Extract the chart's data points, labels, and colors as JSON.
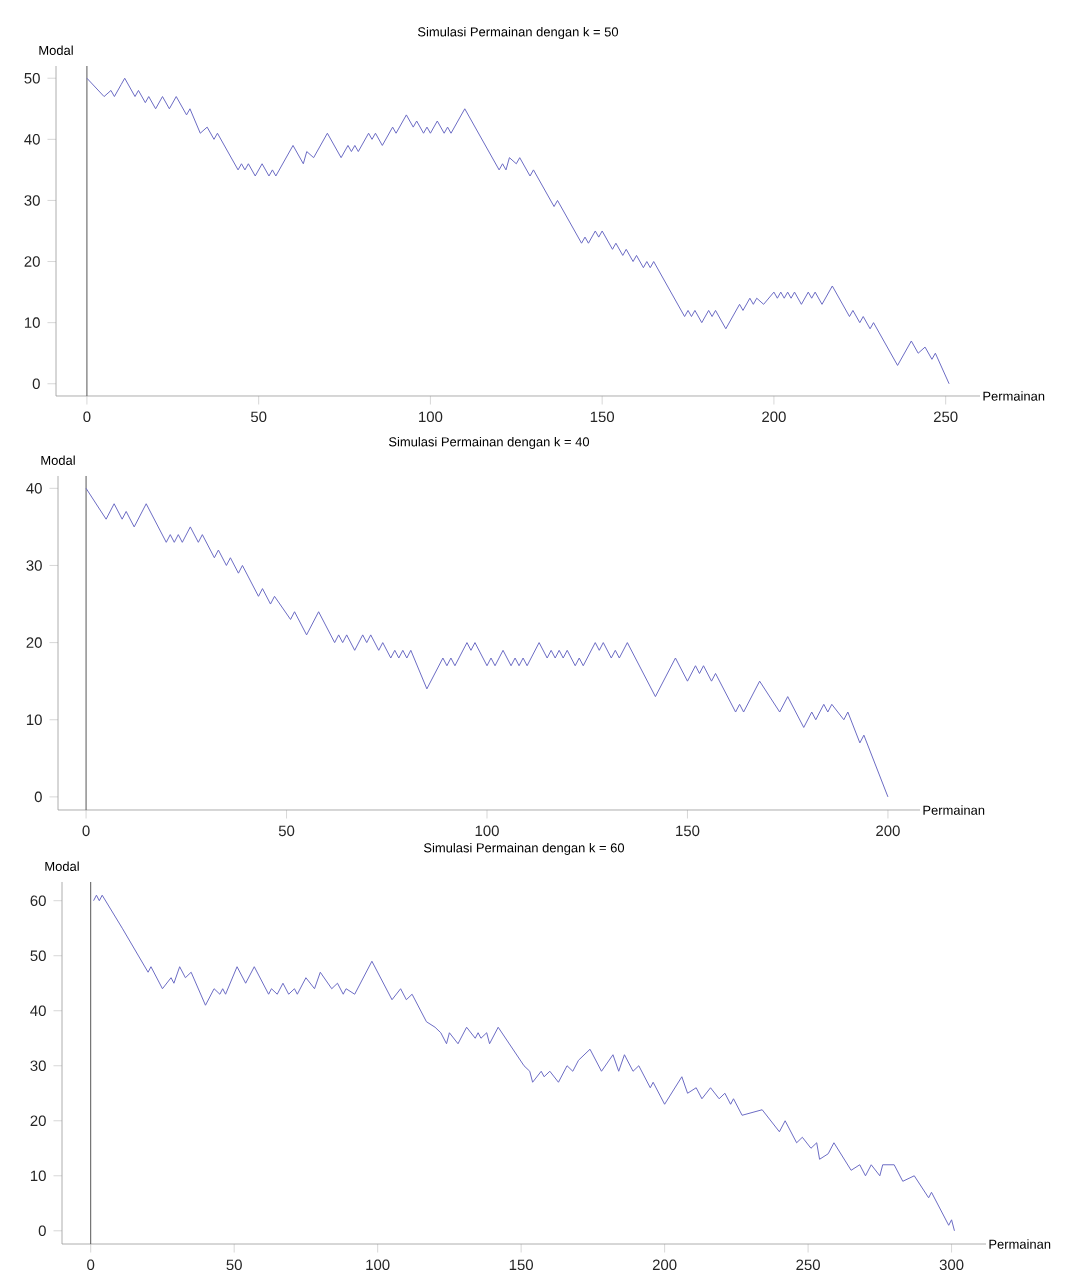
{
  "chart_data": [
    {
      "type": "line",
      "title": "Simulasi Permainan dengan k = 50",
      "xlabel": "Permainan",
      "ylabel": "Modal",
      "xlim": [
        -9,
        260
      ],
      "ylim": [
        -2,
        52
      ],
      "xticks": [
        0,
        50,
        100,
        150,
        200,
        250
      ],
      "yticks": [
        0,
        10,
        20,
        30,
        40,
        50
      ],
      "grid": false,
      "ref_lines": [
        {
          "axis": "x",
          "value": 0,
          "color": "#555555"
        }
      ],
      "series": [
        {
          "color": "#6b6bc4",
          "x": [
            0,
            5,
            7,
            8,
            10,
            11,
            14,
            15,
            17,
            18,
            20,
            22,
            24,
            26,
            29,
            30,
            33,
            35,
            37,
            38,
            44,
            45,
            46,
            47,
            49,
            51,
            53,
            54,
            55,
            60,
            63,
            64,
            66,
            70,
            74,
            76,
            77,
            78,
            79,
            82,
            83,
            84,
            86,
            89,
            90,
            93,
            95,
            96,
            98,
            99,
            100,
            102,
            104,
            105,
            106,
            110,
            120,
            121,
            122,
            123,
            125,
            126,
            129,
            130,
            136,
            137,
            144,
            145,
            146,
            148,
            149,
            150,
            153,
            154,
            156,
            157,
            159,
            160,
            162,
            163,
            164,
            165,
            174,
            175,
            176,
            177,
            179,
            181,
            182,
            183,
            186,
            190,
            191,
            193,
            194,
            195,
            197,
            200,
            201,
            202,
            203,
            204,
            205,
            206,
            208,
            210,
            211,
            212,
            214,
            217,
            222,
            223,
            225,
            226,
            228,
            229,
            236,
            240,
            242,
            244,
            246,
            247,
            251
          ],
          "values": [
            50,
            47,
            48,
            47,
            49,
            50,
            47,
            48,
            46,
            47,
            45,
            47,
            45,
            47,
            44,
            45,
            41,
            42,
            40,
            41,
            35,
            36,
            35,
            36,
            34,
            36,
            34,
            35,
            34,
            39,
            36,
            38,
            37,
            41,
            37,
            39,
            38,
            39,
            38,
            41,
            40,
            41,
            39,
            42,
            41,
            44,
            42,
            43,
            41,
            42,
            41,
            43,
            41,
            42,
            41,
            45,
            35,
            36,
            35,
            37,
            36,
            37,
            34,
            35,
            29,
            30,
            23,
            24,
            23,
            25,
            24,
            25,
            22,
            23,
            21,
            22,
            20,
            21,
            19,
            20,
            19,
            20,
            11,
            12,
            11,
            12,
            10,
            12,
            11,
            12,
            9,
            13,
            12,
            14,
            13,
            14,
            13,
            15,
            14,
            15,
            14,
            15,
            14,
            15,
            13,
            15,
            14,
            15,
            13,
            16,
            11,
            12,
            10,
            11,
            9,
            10,
            3,
            7,
            5,
            6,
            4,
            5,
            0
          ]
        }
      ]
    },
    {
      "type": "line",
      "title": "Simulasi Permainan dengan k = 40",
      "xlabel": "Permainan",
      "ylabel": "Modal",
      "xlim": [
        -7,
        208
      ],
      "ylim": [
        -1.7,
        41.6
      ],
      "xticks": [
        0,
        50,
        100,
        150,
        200
      ],
      "yticks": [
        0,
        10,
        20,
        30,
        40
      ],
      "grid": false,
      "ref_lines": [
        {
          "axis": "x",
          "value": 0,
          "color": "#555555"
        }
      ],
      "series": [
        {
          "color": "#6b6bc4",
          "x": [
            0,
            5,
            7,
            9,
            10,
            12,
            15,
            20,
            21,
            22,
            23,
            24,
            26,
            28,
            29,
            32,
            33,
            35,
            36,
            38,
            39,
            43,
            44,
            46,
            47,
            51,
            52,
            55,
            58,
            62,
            63,
            64,
            65,
            67,
            69,
            70,
            71,
            73,
            74,
            76,
            77,
            78,
            79,
            80,
            81,
            85,
            89,
            90,
            91,
            92,
            95,
            96,
            97,
            100,
            101,
            102,
            104,
            106,
            107,
            108,
            109,
            110,
            113,
            115,
            116,
            117,
            118,
            119,
            120,
            122,
            123,
            124,
            127,
            128,
            129,
            131,
            132,
            133,
            135,
            142,
            147,
            150,
            152,
            153,
            154,
            156,
            157,
            162,
            163,
            164,
            168,
            173,
            175,
            179,
            181,
            182,
            184,
            185,
            186,
            189,
            190,
            193,
            194,
            200
          ],
          "values": [
            40,
            36,
            38,
            36,
            37,
            35,
            38,
            33,
            34,
            33,
            34,
            33,
            35,
            33,
            34,
            31,
            32,
            30,
            31,
            29,
            30,
            26,
            27,
            25,
            26,
            23,
            24,
            21,
            24,
            20,
            21,
            20,
            21,
            19,
            21,
            20,
            21,
            19,
            20,
            18,
            19,
            18,
            19,
            18,
            19,
            14,
            18,
            17,
            18,
            17,
            20,
            19,
            20,
            17,
            18,
            17,
            19,
            17,
            18,
            17,
            18,
            17,
            20,
            18,
            19,
            18,
            19,
            18,
            19,
            17,
            18,
            17,
            20,
            19,
            20,
            18,
            19,
            18,
            20,
            13,
            18,
            15,
            17,
            16,
            17,
            15,
            16,
            11,
            12,
            11,
            15,
            11,
            13,
            9,
            11,
            10,
            12,
            11,
            12,
            10,
            11,
            7,
            8,
            0
          ]
        }
      ]
    },
    {
      "type": "line",
      "title": "Simulasi Permainan dengan k = 60",
      "xlabel": "Permainan",
      "ylabel": "Modal",
      "xlim": [
        -10,
        312
      ],
      "ylim": [
        -2.4,
        63.4
      ],
      "xticks": [
        0,
        50,
        100,
        150,
        200,
        250,
        300
      ],
      "yticks": [
        0,
        10,
        20,
        30,
        40,
        50,
        60
      ],
      "grid": false,
      "ref_lines": [
        {
          "axis": "x",
          "value": 0,
          "color": "#555555"
        }
      ],
      "series": [
        {
          "color": "#6b6bc4",
          "x": [
            1,
            2,
            3,
            4,
            11,
            20,
            21,
            25,
            28,
            29,
            31,
            33,
            35,
            40,
            43,
            45,
            46,
            47,
            51,
            54,
            57,
            62,
            63,
            65,
            67,
            69,
            71,
            72,
            75,
            78,
            80,
            84,
            86,
            88,
            89,
            92,
            98,
            105,
            108,
            110,
            112,
            117,
            120,
            122,
            124,
            125,
            128,
            131,
            134,
            135,
            136,
            138,
            139,
            142,
            151,
            153,
            154,
            157,
            158,
            160,
            163,
            166,
            168,
            170,
            174,
            178,
            182,
            184,
            186,
            189,
            191,
            195,
            196,
            200,
            206,
            208,
            211,
            213,
            216,
            219,
            221,
            223,
            224,
            227,
            234,
            240,
            242,
            246,
            248,
            251,
            253,
            254,
            257,
            259,
            265,
            268,
            270,
            272,
            275,
            276,
            280,
            283,
            287,
            292,
            293,
            299,
            300,
            301
          ],
          "values": [
            60,
            61,
            60,
            61,
            55,
            47,
            48,
            44,
            46,
            45,
            48,
            46,
            47,
            41,
            44,
            43,
            44,
            43,
            48,
            45,
            48,
            43,
            44,
            43,
            45,
            43,
            44,
            43,
            46,
            44,
            47,
            44,
            45,
            43,
            44,
            43,
            49,
            42,
            44,
            42,
            43,
            38,
            37,
            36,
            34,
            36,
            34,
            37,
            35,
            36,
            35,
            36,
            34,
            37,
            30,
            29,
            27,
            29,
            28,
            29,
            27,
            30,
            29,
            31,
            33,
            29,
            32,
            29,
            32,
            29,
            30,
            26,
            27,
            23,
            28,
            25,
            26,
            24,
            26,
            24,
            25,
            23,
            24,
            21,
            22,
            18,
            20,
            16,
            17,
            15,
            16,
            13,
            14,
            16,
            11,
            12,
            10,
            12,
            10,
            12,
            12,
            9,
            10,
            6,
            7,
            1,
            2,
            0
          ]
        }
      ]
    }
  ]
}
